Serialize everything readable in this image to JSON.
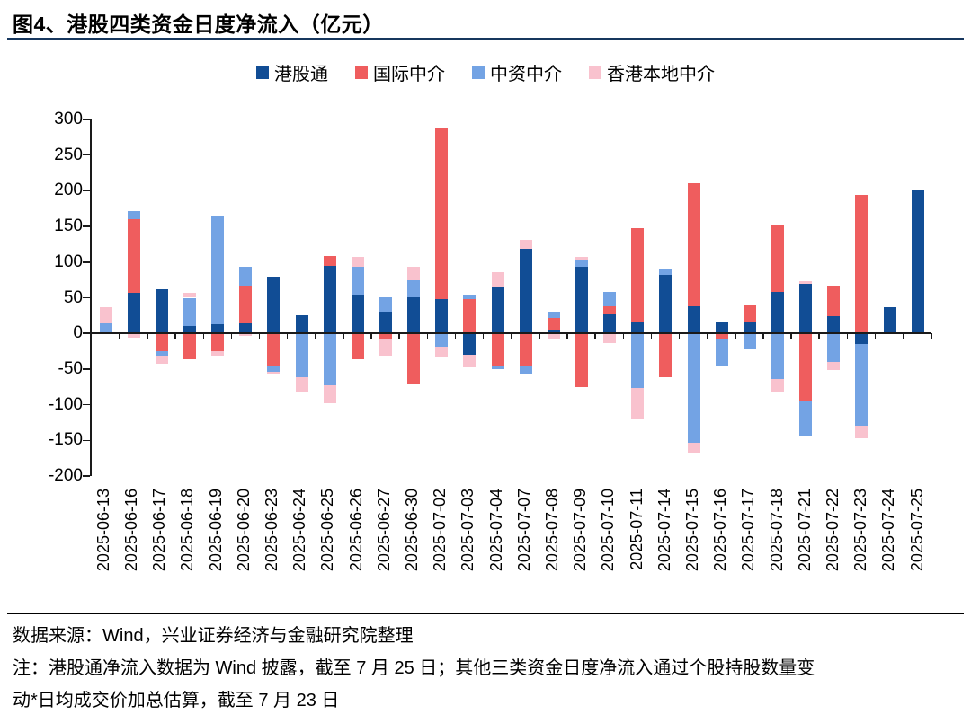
{
  "title": "图4、港股四类资金日度净流入（亿元）",
  "legend": [
    {
      "label": "港股通",
      "color": "#114d95"
    },
    {
      "label": "国际中介",
      "color": "#ef5d5e"
    },
    {
      "label": "中资中介",
      "color": "#73a3e4"
    },
    {
      "label": "香港本地中介",
      "color": "#f9c2ce"
    }
  ],
  "chart_data": {
    "type": "bar",
    "stacked": true,
    "title": "港股四类资金日度净流入（亿元）",
    "xlabel": "",
    "ylabel": "",
    "ylim": [
      -200,
      300
    ],
    "ytick_step": 50,
    "grid": false,
    "legend_position": "top",
    "categories": [
      "2025-06-13",
      "2025-06-16",
      "2025-06-17",
      "2025-06-18",
      "2025-06-19",
      "2025-06-20",
      "2025-06-23",
      "2025-06-24",
      "2025-06-25",
      "2025-06-26",
      "2025-06-27",
      "2025-06-30",
      "2025-07-02",
      "2025-07-03",
      "2025-07-04",
      "2025-07-07",
      "2025-07-08",
      "2025-07-09",
      "2025-07-10",
      "2025-07-11",
      "2025-07-14",
      "2025-07-15",
      "2025-07-16",
      "2025-07-17",
      "2025-07-18",
      "2025-07-21",
      "2025-07-22",
      "2025-07-23",
      "2025-07-24",
      "2025-07-25"
    ],
    "series": [
      {
        "name": "港股通",
        "color": "#114d95",
        "values": [
          2,
          57,
          62,
          10,
          13,
          14,
          79,
          26,
          95,
          53,
          30,
          51,
          48,
          -30,
          65,
          119,
          5,
          94,
          27,
          16,
          82,
          38,
          16,
          17,
          58,
          70,
          24,
          -15,
          37,
          201
        ]
      },
      {
        "name": "国际中介",
        "color": "#ef5d5e",
        "values": [
          0,
          103,
          -25,
          -36,
          -25,
          53,
          -46,
          0,
          14,
          -36,
          -8,
          -70,
          239,
          48,
          -45,
          -46,
          17,
          -75,
          11,
          131,
          -61,
          172,
          -8,
          22,
          95,
          -95,
          43,
          194,
          0,
          0
        ]
      },
      {
        "name": "中资中介",
        "color": "#73a3e4",
        "values": [
          12,
          12,
          -6,
          40,
          152,
          27,
          -8,
          -61,
          -73,
          40,
          21,
          23,
          -19,
          5,
          -5,
          -10,
          8,
          8,
          20,
          -76,
          9,
          -153,
          -38,
          -22,
          -64,
          -50,
          -40,
          -114,
          0,
          0
        ]
      },
      {
        "name": "香港本地中介",
        "color": "#f9c2ce",
        "values": [
          23,
          -6,
          -11,
          7,
          -6,
          -3,
          -3,
          -22,
          -25,
          14,
          -23,
          20,
          -13,
          -17,
          21,
          12,
          -9,
          5,
          -13,
          -44,
          0,
          -14,
          0,
          0,
          -18,
          3,
          -12,
          -18,
          0,
          0
        ]
      }
    ]
  },
  "y_axis_ticks": [
    300,
    250,
    200,
    150,
    100,
    50,
    0,
    -50,
    -100,
    -150,
    -200
  ],
  "footer": {
    "source": "数据来源：Wind，兴业证券经济与金融研究院整理",
    "note_line1": "注：港股通净流入数据为 Wind 披露，截至 7 月 25 日；其他三类资金日度净流入通过个股持股数量变",
    "note_line2": "动*日均成交价加总估算，截至 7 月 23 日"
  }
}
